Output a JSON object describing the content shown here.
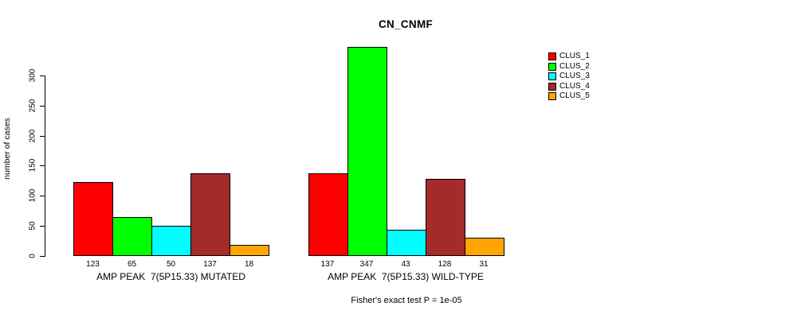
{
  "chart_data": {
    "type": "bar",
    "title": "CN_CNMF",
    "ylabel": "number of cases",
    "xlabel": "",
    "ylim": [
      0,
      300
    ],
    "yticks": [
      0,
      50,
      100,
      150,
      200,
      250,
      300
    ],
    "grid": false,
    "legend_position": "right",
    "series_names": [
      "CLUS_1",
      "CLUS_2",
      "CLUS_3",
      "CLUS_4",
      "CLUS_5"
    ],
    "series_colors": [
      "#FF0000",
      "#00FF00",
      "#00FFFF",
      "#A52A2A",
      "#FFA500"
    ],
    "groups": [
      {
        "label": "AMP PEAK  7(5P15.33) MUTATED",
        "values": [
          123,
          65,
          50,
          137,
          18
        ]
      },
      {
        "label": "AMP PEAK  7(5P15.33) WILD-TYPE",
        "values": [
          137,
          347,
          43,
          128,
          31
        ]
      }
    ],
    "bar_value_labels": true,
    "annotation": "Fisher's exact test P = 1e-05"
  }
}
